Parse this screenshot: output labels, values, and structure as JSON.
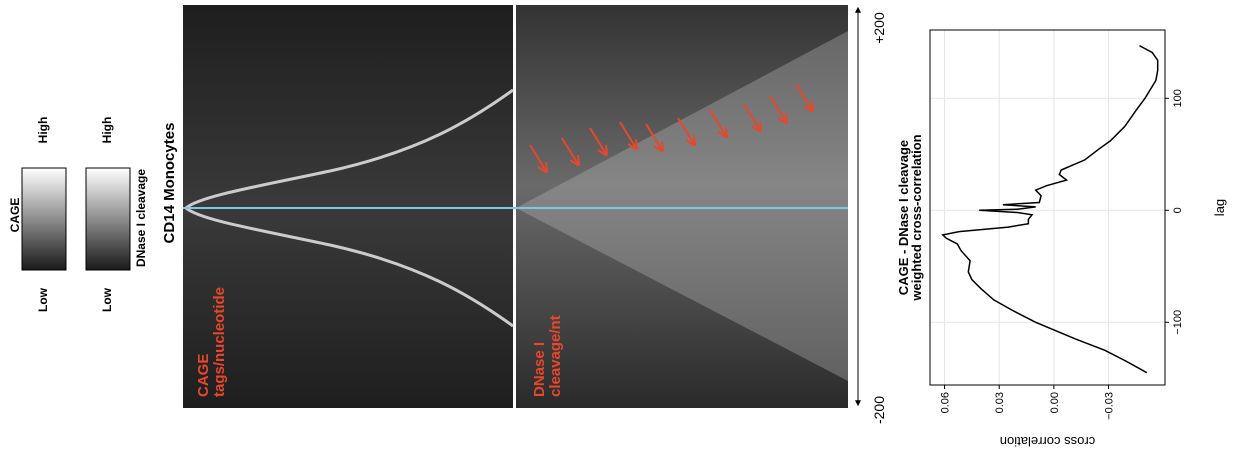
{
  "figure": {
    "legend_cage": {
      "title": "CAGE",
      "low": "Low",
      "high": "High"
    },
    "legend_dnase": {
      "title": "DNase I cleavage",
      "low": "Low",
      "high": "High"
    },
    "cell_type": "CD14 Monocytes",
    "panel_cage": {
      "line1": "CAGE",
      "line2": "tags/nucleotide"
    },
    "panel_dnase": {
      "line1": "DNase I",
      "line2": "cleavage/nt"
    },
    "axis_start": "-200",
    "axis_end": "+200"
  },
  "chart_data": {
    "type": "line",
    "title": [
      "CAGE  - DNase I cleavage",
      "weighted cross-correlation"
    ],
    "x_label": "lag",
    "y_label": "cross correlation",
    "x": [
      -145,
      -135,
      -125,
      -115,
      -100,
      -90,
      -80,
      -70,
      -62,
      -55,
      -45,
      -36,
      -30,
      -25,
      -22,
      -19,
      -15,
      -12,
      -8,
      -4,
      -2,
      0,
      1,
      3,
      5,
      7,
      13,
      18,
      22,
      27,
      32,
      36,
      45,
      55,
      62,
      75,
      89,
      100,
      116,
      125,
      134,
      141,
      147
    ],
    "series": [
      {
        "color": "#000000",
        "values": [
          -0.051,
          -0.04,
          -0.028,
          -0.012,
          0.01,
          0.022,
          0.033,
          0.04,
          0.045,
          0.047,
          0.046,
          0.051,
          0.053,
          0.059,
          0.061,
          0.052,
          0.025,
          0.014,
          0.014,
          0.012,
          0.02,
          0.041,
          0.02,
          0.01,
          0.028,
          0.008,
          0.007,
          0.01,
          0.004,
          -0.007,
          -0.003,
          -0.004,
          -0.017,
          -0.025,
          -0.031,
          -0.039,
          -0.045,
          -0.05,
          -0.056,
          -0.057,
          -0.057,
          -0.054,
          -0.047
        ]
      }
    ],
    "xlim": [
      -156,
      161
    ],
    "xticks": [
      {
        "value": -100,
        "label": "−100"
      },
      0,
      100
    ],
    "ylim": [
      -0.061,
      0.068
    ],
    "yticks": [
      {
        "value": -0.03,
        "label": "−0.03"
      },
      {
        "value": 0,
        "label": "0.00"
      },
      {
        "value": 0.03,
        "label": "0.03"
      },
      {
        "value": 0.06,
        "label": "0.06"
      }
    ],
    "grid": true
  }
}
